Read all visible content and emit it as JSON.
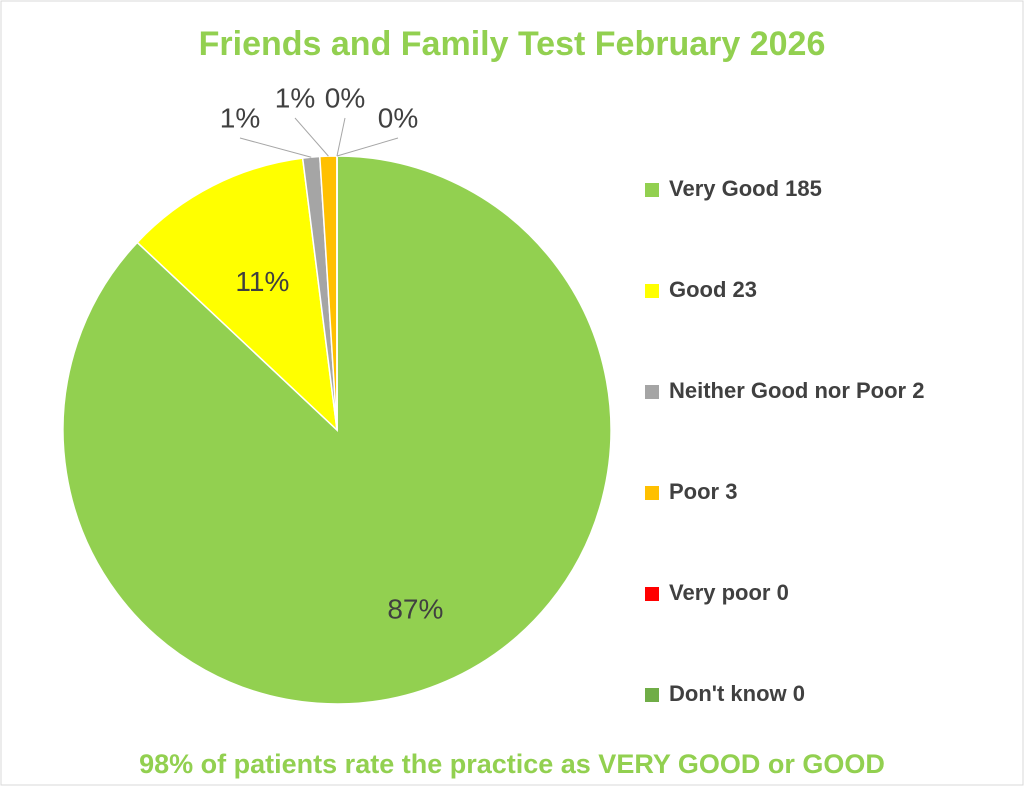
{
  "chart_data": {
    "type": "pie",
    "title": "Friends and Family Test February 2026",
    "annotation": "98% of patients rate the practice as VERY GOOD or GOOD",
    "categories": [
      "Very Good 185",
      "Good 23",
      "Neither Good nor Poor 2",
      "Poor 3",
      "Very poor 0",
      "Don't know 0"
    ],
    "values": [
      87,
      11,
      1,
      1,
      0,
      0
    ],
    "value_labels": [
      "87%",
      "11%",
      "1%",
      "1%",
      "0%",
      "0%"
    ],
    "colors": [
      "#92d050",
      "#ffff00",
      "#a5a5a5",
      "#ffc000",
      "#ff0000",
      "#70ad47"
    ],
    "title_color": "#92d050",
    "legend": "right"
  }
}
